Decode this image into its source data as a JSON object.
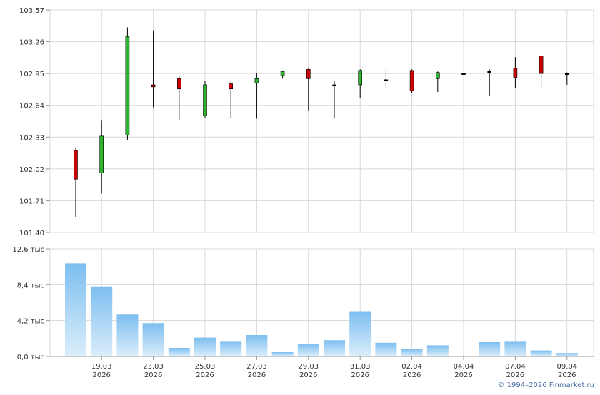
{
  "colors": {
    "up": "#2db52d",
    "down": "#cc0000",
    "grid": "#d8d8d8",
    "axis": "#999999",
    "volume_top": "#7dbef0",
    "volume_bottom": "#dbeefb"
  },
  "copyright": "© 1994–2026 Finmarket.ru",
  "chart_data": [
    {
      "type": "candlestick",
      "yticks": [
        "103,57",
        "103,26",
        "102,95",
        "102,64",
        "102,33",
        "102,02",
        "101,71",
        "101,40"
      ],
      "ylim": [
        101.4,
        103.57
      ],
      "grid": true,
      "candles": [
        {
          "open": 102.2,
          "high": 102.22,
          "low": 101.55,
          "close": 101.92
        },
        {
          "open": 101.98,
          "high": 102.49,
          "low": 101.78,
          "close": 102.34
        },
        {
          "open": 102.35,
          "high": 103.4,
          "low": 102.3,
          "close": 103.31
        },
        {
          "open": 102.84,
          "high": 103.37,
          "low": 102.62,
          "close": 102.82
        },
        {
          "open": 102.9,
          "high": 102.93,
          "low": 102.5,
          "close": 102.8
        },
        {
          "open": 102.54,
          "high": 102.88,
          "low": 102.52,
          "close": 102.84
        },
        {
          "open": 102.85,
          "high": 102.87,
          "low": 102.52,
          "close": 102.8
        },
        {
          "open": 102.86,
          "high": 102.95,
          "low": 102.51,
          "close": 102.9
        },
        {
          "open": 102.93,
          "high": 102.98,
          "low": 102.9,
          "close": 102.97
        },
        {
          "open": 102.99,
          "high": 103.0,
          "low": 102.59,
          "close": 102.9
        },
        {
          "open": 102.84,
          "high": 102.88,
          "low": 102.51,
          "close": 102.84
        },
        {
          "open": 102.84,
          "high": 102.99,
          "low": 102.71,
          "close": 102.98
        },
        {
          "open": 102.89,
          "high": 102.99,
          "low": 102.8,
          "close": 102.89
        },
        {
          "open": 102.98,
          "high": 102.99,
          "low": 102.76,
          "close": 102.78
        },
        {
          "open": 102.9,
          "high": 102.97,
          "low": 102.77,
          "close": 102.96
        },
        {
          "open": 102.95,
          "high": 102.95,
          "low": 102.95,
          "close": 102.95
        },
        {
          "open": 102.97,
          "high": 102.99,
          "low": 102.73,
          "close": 102.97
        },
        {
          "open": 103.0,
          "high": 103.11,
          "low": 102.81,
          "close": 102.91
        },
        {
          "open": 103.12,
          "high": 103.13,
          "low": 102.8,
          "close": 102.95
        },
        {
          "open": 102.95,
          "high": 102.96,
          "low": 102.84,
          "close": 102.95
        }
      ]
    },
    {
      "type": "bar",
      "yticks": [
        "12,6 тыс",
        "8,4 тыс",
        "4,2 тыс",
        "0,0 тыс"
      ],
      "ylim": [
        0,
        12.6
      ],
      "unit": "тыс",
      "grid": true,
      "values": [
        10.9,
        8.2,
        4.9,
        3.9,
        1.0,
        2.2,
        1.8,
        2.5,
        0.5,
        1.5,
        1.9,
        5.3,
        1.6,
        0.9,
        1.3,
        0.05,
        1.7,
        1.8,
        0.7,
        0.4
      ]
    }
  ],
  "xaxis": {
    "ticks": [
      {
        "index": 1,
        "day": "19.03",
        "year": "2026"
      },
      {
        "index": 3,
        "day": "23.03",
        "year": "2026"
      },
      {
        "index": 5,
        "day": "25.03",
        "year": "2026"
      },
      {
        "index": 7,
        "day": "27.03",
        "year": "2026"
      },
      {
        "index": 9,
        "day": "29.03",
        "year": "2026"
      },
      {
        "index": 11,
        "day": "31.03",
        "year": "2026"
      },
      {
        "index": 13,
        "day": "02.04",
        "year": "2026"
      },
      {
        "index": 15,
        "day": "04.04",
        "year": "2026"
      },
      {
        "index": 17,
        "day": "07.04",
        "year": "2026"
      },
      {
        "index": 19,
        "day": "09.04",
        "year": "2026"
      }
    ]
  }
}
